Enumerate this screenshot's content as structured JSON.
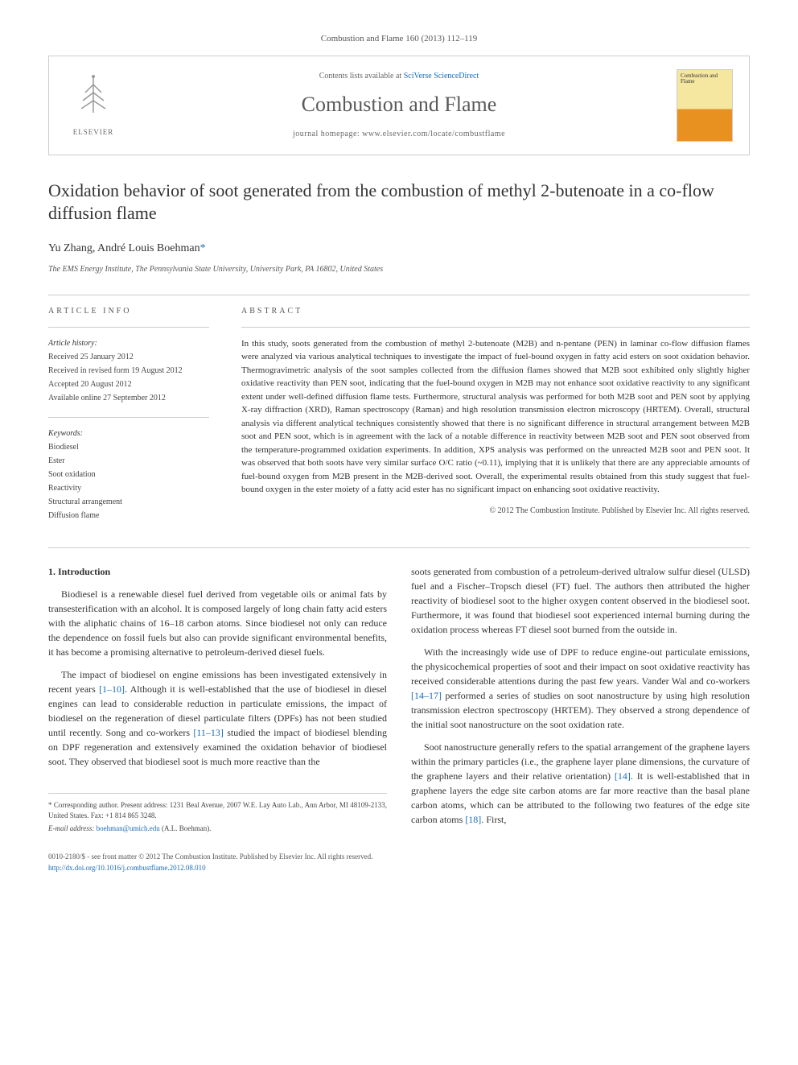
{
  "header": {
    "citation": "Combustion and Flame 160 (2013) 112–119",
    "contents_prefix": "Contents lists available at ",
    "contents_link": "SciVerse ScienceDirect",
    "journal_name": "Combustion and Flame",
    "homepage_prefix": "journal homepage: ",
    "homepage_url": "www.elsevier.com/locate/combustflame",
    "elsevier_label": "ELSEVIER",
    "cover_title": "Combustion and Flame"
  },
  "article": {
    "title": "Oxidation behavior of soot generated from the combustion of methyl 2-butenoate in a co-flow diffusion flame",
    "authors_text": "Yu Zhang, André Louis Boehman",
    "corr_marker": "*",
    "affiliation": "The EMS Energy Institute, The Pennsylvania State University, University Park, PA 16802, United States"
  },
  "info": {
    "heading": "ARTICLE INFO",
    "history_label": "Article history:",
    "history": [
      "Received 25 January 2012",
      "Received in revised form 19 August 2012",
      "Accepted 20 August 2012",
      "Available online 27 September 2012"
    ],
    "keywords_label": "Keywords:",
    "keywords": [
      "Biodiesel",
      "Ester",
      "Soot oxidation",
      "Reactivity",
      "Structural arrangement",
      "Diffusion flame"
    ]
  },
  "abstract": {
    "heading": "ABSTRACT",
    "text": "In this study, soots generated from the combustion of methyl 2-butenoate (M2B) and n-pentane (PEN) in laminar co-flow diffusion flames were analyzed via various analytical techniques to investigate the impact of fuel-bound oxygen in fatty acid esters on soot oxidation behavior. Thermogravimetric analysis of the soot samples collected from the diffusion flames showed that M2B soot exhibited only slightly higher oxidative reactivity than PEN soot, indicating that the fuel-bound oxygen in M2B may not enhance soot oxidative reactivity to any significant extent under well-defined diffusion flame tests. Furthermore, structural analysis was performed for both M2B soot and PEN soot by applying X-ray diffraction (XRD), Raman spectroscopy (Raman) and high resolution transmission electron microscopy (HRTEM). Overall, structural analysis via different analytical techniques consistently showed that there is no significant difference in structural arrangement between M2B soot and PEN soot, which is in agreement with the lack of a notable difference in reactivity between M2B soot and PEN soot observed from the temperature-programmed oxidation experiments. In addition, XPS analysis was performed on the unreacted M2B soot and PEN soot. It was observed that both soots have very similar surface O/C ratio (~0.11), implying that it is unlikely that there are any appreciable amounts of fuel-bound oxygen from M2B present in the M2B-derived soot. Overall, the experimental results obtained from this study suggest that fuel-bound oxygen in the ester moiety of a fatty acid ester has no significant impact on enhancing soot oxidative reactivity.",
    "copyright": "© 2012 The Combustion Institute. Published by Elsevier Inc. All rights reserved."
  },
  "body": {
    "section_heading": "1. Introduction",
    "left_paras": [
      "Biodiesel is a renewable diesel fuel derived from vegetable oils or animal fats by transesterification with an alcohol. It is composed largely of long chain fatty acid esters with the aliphatic chains of 16–18 carbon atoms. Since biodiesel not only can reduce the dependence on fossil fuels but also can provide significant environmental benefits, it has become a promising alternative to petroleum-derived diesel fuels.",
      "The impact of biodiesel on engine emissions has been investigated extensively in recent years [1–10]. Although it is well-established that the use of biodiesel in diesel engines can lead to considerable reduction in particulate emissions, the impact of biodiesel on the regeneration of diesel particulate filters (DPFs) has not been studied until recently. Song and co-workers [11–13] studied the impact of biodiesel blending on DPF regeneration and extensively examined the oxidation behavior of biodiesel soot. They observed that biodiesel soot is much more reactive than the"
    ],
    "right_paras": [
      "soots generated from combustion of a petroleum-derived ultralow sulfur diesel (ULSD) fuel and a Fischer–Tropsch diesel (FT) fuel. The authors then attributed the higher reactivity of biodiesel soot to the higher oxygen content observed in the biodiesel soot. Furthermore, it was found that biodiesel soot experienced internal burning during the oxidation process whereas FT diesel soot burned from the outside in.",
      "With the increasingly wide use of DPF to reduce engine-out particulate emissions, the physicochemical properties of soot and their impact on soot oxidative reactivity has received considerable attentions during the past few years. Vander Wal and co-workers [14–17] performed a series of studies on soot nanostructure by using high resolution transmission electron spectroscopy (HRTEM). They observed a strong dependence of the initial soot nanostructure on the soot oxidation rate.",
      "Soot nanostructure generally refers to the spatial arrangement of the graphene layers within the primary particles (i.e., the graphene layer plane dimensions, the curvature of the graphene layers and their relative orientation) [14]. It is well-established that in graphene layers the edge site carbon atoms are far more reactive than the basal plane carbon atoms, which can be attributed to the following two features of the edge site carbon atoms [18]. First,"
    ],
    "ref_ranges": {
      "r1": "[1–10]",
      "r2": "[11–13]",
      "r3": "[14–17]",
      "r4": "[14]",
      "r5": "[18]"
    }
  },
  "footnote": {
    "corr_label": "* Corresponding author. Present address: 1231 Beal Avenue, 2007 W.E. Lay Auto Lab., Ann Arbor, MI 48109-2133, United States. Fax: +1 814 865 3248.",
    "email_label": "E-mail address:",
    "email": "boehman@umich.edu",
    "email_suffix": "(A.L. Boehman)."
  },
  "footer": {
    "issn_line": "0010-2180/$ - see front matter © 2012 The Combustion Institute. Published by Elsevier Inc. All rights reserved.",
    "doi_line": "http://dx.doi.org/10.1016/j.combustflame.2012.08.010"
  },
  "colors": {
    "link": "#1a6bb5",
    "text": "#333333",
    "border": "#cccccc"
  }
}
